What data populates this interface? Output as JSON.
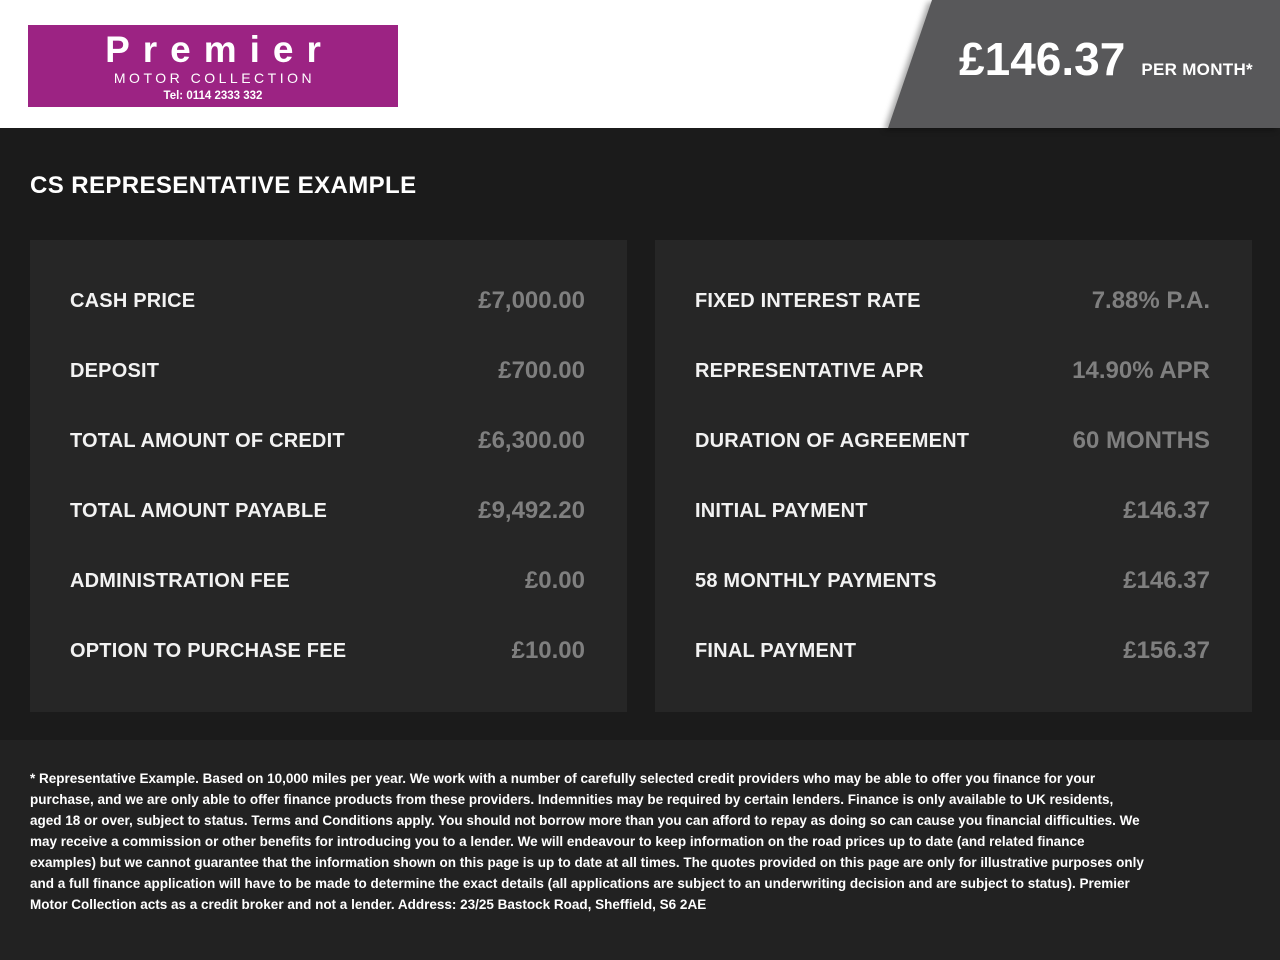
{
  "header": {
    "logo": {
      "name": "Premier",
      "subtitle": "MOTOR COLLECTION",
      "tel": "Tel: 0114 2333 332"
    },
    "price_banner": {
      "amount": "£146.37",
      "suffix": "PER MONTH*"
    }
  },
  "main": {
    "title": "CS REPRESENTATIVE EXAMPLE",
    "left_table": {
      "rows": [
        {
          "label": "CASH PRICE",
          "value": "£7,000.00"
        },
        {
          "label": "DEPOSIT",
          "value": "£700.00"
        },
        {
          "label": "TOTAL AMOUNT OF CREDIT",
          "value": "£6,300.00"
        },
        {
          "label": "TOTAL AMOUNT PAYABLE",
          "value": "£9,492.20"
        },
        {
          "label": "ADMINISTRATION FEE",
          "value": "£0.00"
        },
        {
          "label": "OPTION TO PURCHASE FEE",
          "value": "£10.00"
        }
      ]
    },
    "right_table": {
      "rows": [
        {
          "label": "FIXED INTEREST RATE",
          "value": "7.88% P.A."
        },
        {
          "label": "REPRESENTATIVE APR",
          "value": "14.90% APR"
        },
        {
          "label": "DURATION OF AGREEMENT",
          "value": "60 MONTHS"
        },
        {
          "label": "INITIAL PAYMENT",
          "value": "£146.37"
        },
        {
          "label": "58 MONTHLY PAYMENTS",
          "value": "£146.37"
        },
        {
          "label": "FINAL PAYMENT",
          "value": "£156.37"
        }
      ]
    }
  },
  "footer": {
    "disclaimer": "* Representative Example. Based on 10,000 miles per year. We work with a number of carefully selected credit providers who may be able to offer you finance for your purchase, and we are only able to offer finance products from these providers. Indemnities may be required by certain lenders. Finance is only available to UK residents, aged 18 or over, subject to status. Terms and Conditions apply. You should not borrow more than you can afford to repay as doing so can cause you financial difficulties. We may receive a commission or other benefits for introducing you to a lender. We will endeavour to keep information on the road prices up to date (and related finance examples) but we cannot guarantee that the information shown on this page is up to date at all times. The quotes provided on this page are only for illustrative purposes only and a full finance application will have to be made to determine the exact details (all applications are subject to an underwriting decision and are subject to status). Premier Motor Collection acts as a credit broker and not a lender. Address: 23/25 Bastock Road, Sheffield, S6 2AE"
  },
  "colors": {
    "brand_magenta": "#9c2383",
    "banner_gray": "#58585a",
    "page_bg": "#1b1b1b",
    "panel_bg": "#262626",
    "footer_bg": "#222222",
    "value_text": "#7f7f7f"
  }
}
